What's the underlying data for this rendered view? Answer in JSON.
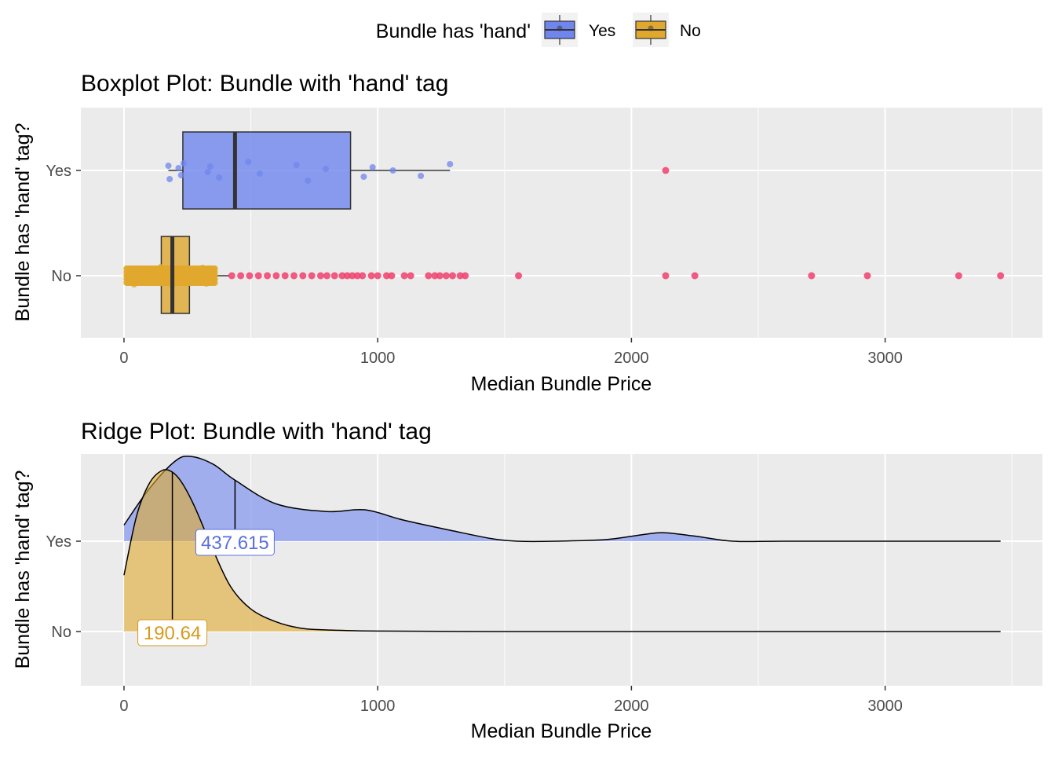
{
  "legend": {
    "title": "Bundle has 'hand'",
    "items": [
      {
        "label": "Yes",
        "color": "#6f86ee"
      },
      {
        "label": "No",
        "color": "#e0a82e"
      }
    ]
  },
  "colors": {
    "yes_fill": "#6f86ee",
    "no_fill": "#e0a82e",
    "outlier": "#f0406c",
    "panel_bg": "#ebebeb",
    "grid": "#ffffff",
    "label_yes_text": "#5a6fe0",
    "label_no_text": "#d89a1e"
  },
  "chart_data": [
    {
      "type": "boxplot",
      "title": "Boxplot Plot: Bundle with 'hand' tag",
      "xlabel": "Median Bundle Price",
      "ylabel": "Bundle has 'hand' tag?",
      "xlim": [
        -170,
        3620
      ],
      "xticks": [
        0,
        1000,
        2000,
        3000
      ],
      "categories": [
        "Yes",
        "No"
      ],
      "grid": true,
      "series": [
        {
          "name": "Yes",
          "q1": 232,
          "median": 437.615,
          "q3": 893,
          "whisker_low": 175,
          "whisker_high": 1285,
          "points": [
            175,
            180,
            215,
            225,
            235,
            330,
            340,
            375,
            490,
            535,
            680,
            725,
            795,
            945,
            980,
            1060,
            1170,
            1285
          ],
          "outliers": [
            2135
          ]
        },
        {
          "name": "No",
          "q1": 147,
          "median": 190.64,
          "q3": 258,
          "whisker_low": 5,
          "whisker_high": 415,
          "points": [
            20,
            40,
            55,
            70,
            85,
            100,
            115,
            130,
            145,
            160,
            175,
            190,
            205,
            220,
            235,
            250,
            265,
            280,
            295,
            310,
            325,
            340,
            355
          ],
          "outliers": [
            425,
            460,
            495,
            530,
            565,
            600,
            635,
            670,
            705,
            740,
            775,
            800,
            830,
            860,
            880,
            900,
            920,
            940,
            975,
            1000,
            1035,
            1055,
            1105,
            1130,
            1200,
            1225,
            1245,
            1270,
            1295,
            1325,
            1345,
            1555,
            2135,
            2250,
            2710,
            2930,
            3290,
            3455
          ]
        }
      ]
    },
    {
      "type": "ridge",
      "title": "Ridge Plot: Bundle with 'hand' tag",
      "xlabel": "Median Bundle Price",
      "ylabel": "Bundle has 'hand' tag?",
      "xlim": [
        -170,
        3620
      ],
      "xticks": [
        0,
        1000,
        2000,
        3000
      ],
      "categories": [
        "Yes",
        "No"
      ],
      "grid": true,
      "series": [
        {
          "name": "Yes",
          "median": 437.615,
          "median_label": "437.615",
          "density_x": [
            0,
            100,
            200,
            260,
            350,
            437.6,
            600,
            800,
            950,
            1100,
            1300,
            1450,
            1550,
            1700,
            1900,
            2050,
            2130,
            2250,
            2400,
            2600,
            3000,
            3455
          ],
          "density_y": [
            0.19,
            0.62,
            0.94,
            1.0,
            0.91,
            0.72,
            0.44,
            0.35,
            0.37,
            0.25,
            0.12,
            0.03,
            0.0,
            0.0,
            0.02,
            0.08,
            0.1,
            0.06,
            0.0,
            0.0,
            0.0,
            0.0
          ]
        },
        {
          "name": "No",
          "median": 190.64,
          "median_label": "190.64",
          "density_x": [
            0,
            50,
            100,
            150,
            190.6,
            230,
            280,
            350,
            420,
            500,
            600,
            700,
            800,
            1000,
            1500,
            2000,
            3000,
            3455
          ],
          "density_y": [
            0.35,
            0.72,
            0.92,
            1.0,
            0.99,
            0.92,
            0.77,
            0.51,
            0.28,
            0.14,
            0.06,
            0.02,
            0.01,
            0.003,
            0.0,
            0.0,
            0.0,
            0.0
          ]
        }
      ]
    }
  ]
}
